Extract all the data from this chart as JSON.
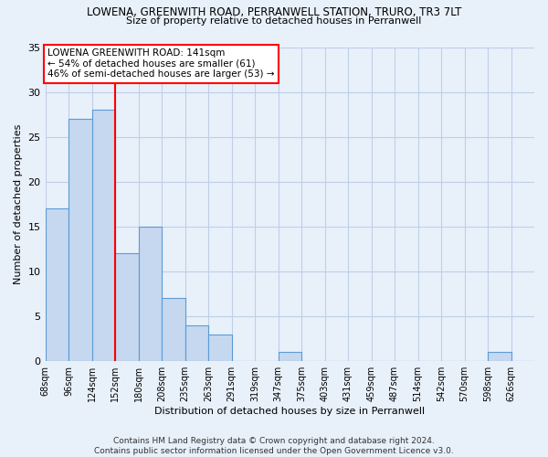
{
  "title": "LOWENA, GREENWITH ROAD, PERRANWELL STATION, TRURO, TR3 7LT",
  "subtitle": "Size of property relative to detached houses in Perranwell",
  "xlabel": "Distribution of detached houses by size in Perranwell",
  "ylabel": "Number of detached properties",
  "bar_color": "#c5d8f0",
  "bar_edge_color": "#5b9bd5",
  "bg_color": "#e8f0fa",
  "categories": [
    "68sqm",
    "96sqm",
    "124sqm",
    "152sqm",
    "180sqm",
    "208sqm",
    "235sqm",
    "263sqm",
    "291sqm",
    "319sqm",
    "347sqm",
    "375sqm",
    "403sqm",
    "431sqm",
    "459sqm",
    "487sqm",
    "514sqm",
    "542sqm",
    "570sqm",
    "598sqm",
    "626sqm"
  ],
  "values": [
    17,
    27,
    28,
    12,
    15,
    7,
    4,
    3,
    0,
    0,
    1,
    0,
    0,
    0,
    0,
    0,
    0,
    0,
    0,
    1,
    0
  ],
  "ylim": [
    0,
    35
  ],
  "yticks": [
    0,
    5,
    10,
    15,
    20,
    25,
    30,
    35
  ],
  "annotation_text": "LOWENA GREENWITH ROAD: 141sqm\n← 54% of detached houses are smaller (61)\n46% of semi-detached houses are larger (53) →",
  "footer": "Contains HM Land Registry data © Crown copyright and database right 2024.\nContains public sector information licensed under the Open Government Licence v3.0.",
  "grid_color": "#c0cfe8",
  "red_line_index": 3
}
